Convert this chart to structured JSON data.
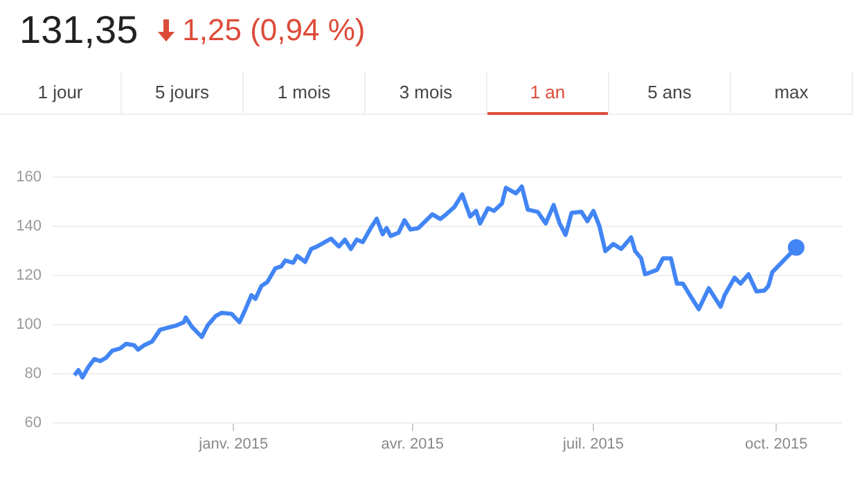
{
  "chart_data": {
    "type": "line",
    "title": "131,35",
    "subtitle": "1,25 (0,94 %)",
    "annotations": [
      "1 jour",
      "5 jours",
      "1 mois",
      "3 mois",
      "1 an",
      "5 ans",
      "max"
    ],
    "xlim": [
      "2014-10-02",
      "2015-11-03"
    ],
    "xticks": [
      {
        "value": "2015-01-01",
        "label": "janv. 2015"
      },
      {
        "value": "2015-04-01",
        "label": "avr. 2015"
      },
      {
        "value": "2015-07-01",
        "label": "juil. 2015"
      },
      {
        "value": "2015-10-01",
        "label": "oct. 2015"
      }
    ],
    "ylim": [
      60,
      160
    ],
    "yticks": [
      60,
      80,
      100,
      120,
      140,
      160
    ],
    "grid": "y",
    "legend": false,
    "marker": "none",
    "line_style": "solid",
    "series": [
      {
        "color": "#4285f4",
        "x": [
          "2014-10-13",
          "2014-10-15",
          "2014-10-17",
          "2014-10-20",
          "2014-10-23",
          "2014-10-26",
          "2014-10-29",
          "2014-11-01",
          "2014-11-05",
          "2014-11-08",
          "2014-11-12",
          "2014-11-14",
          "2014-11-17",
          "2014-11-21",
          "2014-11-25",
          "2014-12-01",
          "2014-12-03",
          "2014-12-07",
          "2014-12-08",
          "2014-12-11",
          "2014-12-16",
          "2014-12-19",
          "2014-12-23",
          "2014-12-26",
          "2014-12-31",
          "2015-01-04",
          "2015-01-07",
          "2015-01-10",
          "2015-01-12",
          "2015-01-15",
          "2015-01-18",
          "2015-01-22",
          "2015-01-25",
          "2015-01-27",
          "2015-01-31",
          "2015-02-02",
          "2015-02-06",
          "2015-02-09",
          "2015-02-12",
          "2015-02-16",
          "2015-02-19",
          "2015-02-23",
          "2015-02-26",
          "2015-03-01",
          "2015-03-04",
          "2015-03-07",
          "2015-03-11",
          "2015-03-14",
          "2015-03-17",
          "2015-03-19",
          "2015-03-21",
          "2015-03-25",
          "2015-03-28",
          "2015-03-31",
          "2015-04-04",
          "2015-04-11",
          "2015-04-15",
          "2015-04-18",
          "2015-04-22",
          "2015-04-26",
          "2015-04-30",
          "2015-05-03",
          "2015-05-05",
          "2015-05-09",
          "2015-05-12",
          "2015-05-16",
          "2015-05-18",
          "2015-05-23",
          "2015-05-26",
          "2015-05-29",
          "2015-06-03",
          "2015-06-07",
          "2015-06-11",
          "2015-06-14",
          "2015-06-17",
          "2015-06-20",
          "2015-06-25",
          "2015-06-28",
          "2015-07-01",
          "2015-07-04",
          "2015-07-07",
          "2015-07-11",
          "2015-07-15",
          "2015-07-20",
          "2015-07-22",
          "2015-07-25",
          "2015-07-27",
          "2015-08-02",
          "2015-08-05",
          "2015-08-09",
          "2015-08-12",
          "2015-08-15",
          "2015-08-20",
          "2015-08-23",
          "2015-08-28",
          "2015-09-03",
          "2015-09-05",
          "2015-09-10",
          "2015-09-13",
          "2015-09-17",
          "2015-09-21",
          "2015-09-25",
          "2015-09-27",
          "2015-09-29",
          "2015-10-04",
          "2015-10-11"
        ],
        "values": [
          79.4,
          81.5,
          78.5,
          82.8,
          86,
          85.2,
          86.6,
          89.4,
          90.3,
          92.2,
          91.6,
          89.8,
          91.6,
          93.1,
          97.9,
          99.2,
          99.6,
          101,
          102.9,
          99.2,
          95,
          99.7,
          103.5,
          104.8,
          104.4,
          101,
          106.3,
          112,
          110.5,
          115.7,
          117.3,
          122.9,
          123.7,
          126.1,
          125.2,
          128,
          125.5,
          130.8,
          131.8,
          133.6,
          135,
          131.8,
          134.6,
          130.8,
          134.6,
          133.6,
          139.3,
          143.1,
          136.8,
          139.3,
          136.1,
          137.4,
          142.5,
          138.7,
          139.3,
          144.9,
          143,
          144.9,
          147.8,
          153,
          144,
          146.3,
          141.2,
          147.4,
          146.3,
          149.3,
          155.7,
          153.4,
          156.2,
          146.8,
          145.9,
          141.2,
          148.7,
          141.2,
          136.5,
          145.5,
          145.9,
          142.1,
          146.3,
          140.2,
          129.9,
          132.8,
          130.8,
          135.5,
          129.9,
          127,
          120.5,
          122.3,
          127,
          127,
          116.7,
          116.7,
          110.1,
          106.3,
          114.8,
          107.3,
          112,
          119.1,
          116.7,
          120.5,
          113.5,
          113.9,
          115.7,
          121.4,
          125.5,
          131.4
        ]
      },
      {
        "type": "scatter",
        "color": "#4285f4",
        "marker": "circle",
        "x": [
          "2015-10-11"
        ],
        "values": [
          131.4
        ]
      }
    ]
  }
}
